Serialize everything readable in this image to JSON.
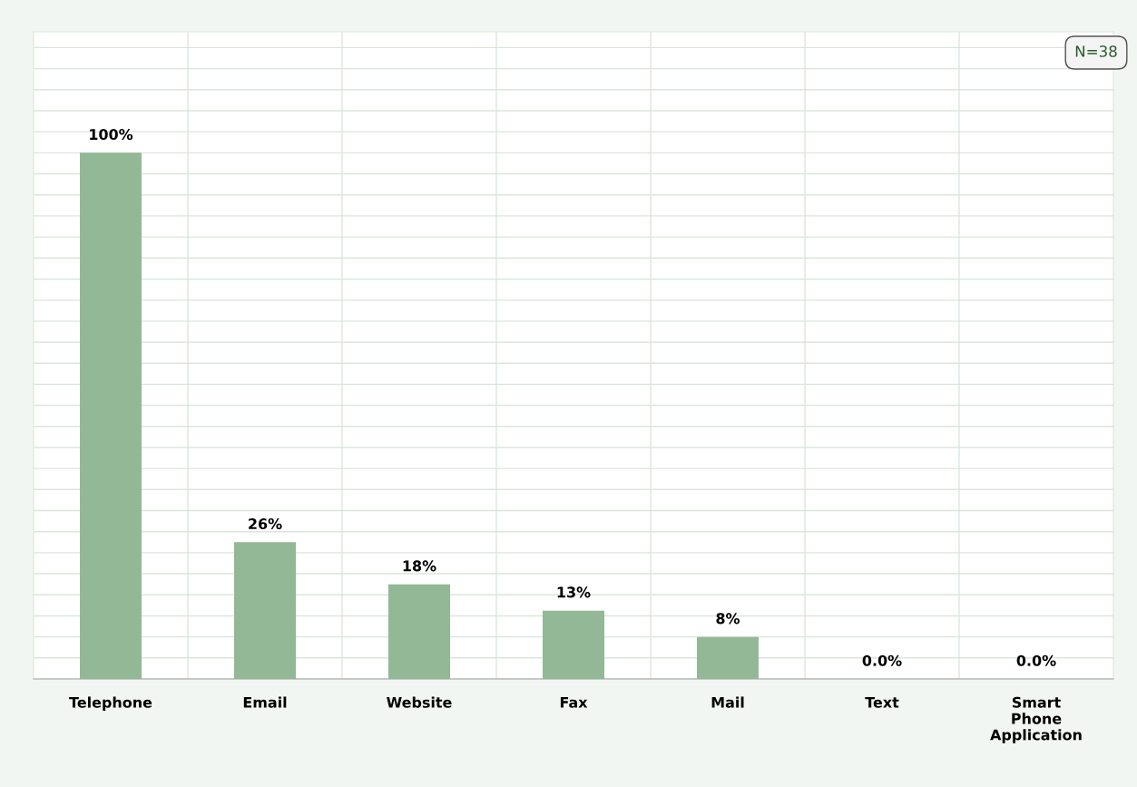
{
  "chart_data": {
    "type": "bar",
    "categories": [
      "Telephone",
      "Email",
      "Website",
      "Fax",
      "Mail",
      "Text",
      "Smart\nPhone\nApplication"
    ],
    "values": [
      100,
      26,
      18,
      13,
      8,
      0,
      0
    ],
    "value_labels": [
      "100%",
      "26%",
      "18%",
      "13%",
      "8%",
      "0.0%",
      "0.0%"
    ],
    "color": "#93b896",
    "ylim": [
      0,
      123
    ],
    "yticks": [
      {
        "value": 0,
        "label": null
      },
      {
        "value": 4,
        "label": null
      },
      {
        "value": 8,
        "label": null
      },
      {
        "value": 12,
        "label": null
      },
      {
        "value": 16,
        "label": null
      },
      {
        "value": 20,
        "label": null
      },
      {
        "value": 24,
        "label": null
      },
      {
        "value": 28,
        "label": null
      },
      {
        "value": 32,
        "label": null
      },
      {
        "value": 36,
        "label": null
      },
      {
        "value": 40,
        "label": null
      },
      {
        "value": 44,
        "label": null
      },
      {
        "value": 48,
        "label": null
      },
      {
        "value": 52,
        "label": null
      },
      {
        "value": 56,
        "label": null
      },
      {
        "value": 60,
        "label": null
      },
      {
        "value": 64,
        "label": null
      },
      {
        "value": 68,
        "label": null
      },
      {
        "value": 72,
        "label": null
      },
      {
        "value": 76,
        "label": null
      },
      {
        "value": 80,
        "label": null
      },
      {
        "value": 84,
        "label": null
      },
      {
        "value": 88,
        "label": null
      },
      {
        "value": 92,
        "label": null
      },
      {
        "value": 96,
        "label": null
      },
      {
        "value": 100,
        "label": null
      },
      {
        "value": 104,
        "label": null
      },
      {
        "value": 108,
        "label": null
      },
      {
        "value": 112,
        "label": null
      },
      {
        "value": 116,
        "label": null
      },
      {
        "value": 120,
        "label": null
      }
    ],
    "grid": true,
    "tick_labels": "x",
    "annotations": [
      "N=38"
    ]
  }
}
